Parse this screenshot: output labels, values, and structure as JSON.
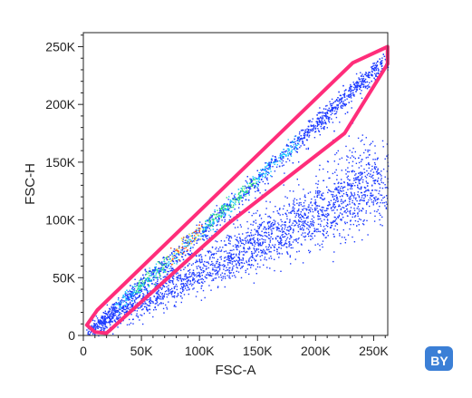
{
  "chart_data": {
    "type": "scatter",
    "xlabel": "FSC-A",
    "ylabel": "FSC-H",
    "xlim": [
      0,
      262144
    ],
    "ylim": [
      0,
      262144
    ],
    "x_ticks": [
      {
        "value": 0,
        "label": "0"
      },
      {
        "value": 50000,
        "label": "50K"
      },
      {
        "value": 100000,
        "label": "100K"
      },
      {
        "value": 150000,
        "label": "150K"
      },
      {
        "value": 200000,
        "label": "200K"
      },
      {
        "value": 250000,
        "label": "250K"
      }
    ],
    "y_ticks": [
      {
        "value": 0,
        "label": "0"
      },
      {
        "value": 50000,
        "label": "50K"
      },
      {
        "value": 100000,
        "label": "100K"
      },
      {
        "value": 150000,
        "label": "150K"
      },
      {
        "value": 200000,
        "label": "200K"
      },
      {
        "value": 250000,
        "label": "250K"
      }
    ],
    "minor_ticks_per_major": 4,
    "grid": false,
    "style": "pseudocolor density dot plot",
    "density_colors": [
      "#1f3cff",
      "#22c6ff",
      "#2fe07a",
      "#f2e23a",
      "#ff4a1a"
    ],
    "populations": [
      {
        "description": "singlet diagonal band",
        "from": [
          8000,
          6000
        ],
        "to": [
          260000,
          240000
        ],
        "spread": 6000,
        "points": 2600
      },
      {
        "description": "lower spread cloud",
        "from": [
          15000,
          8000
        ],
        "to": [
          260000,
          130000
        ],
        "spread": 22000,
        "points": 2200
      }
    ],
    "gate": {
      "shape": "polygon",
      "color": "#ff2d7a",
      "vertices": [
        [
          3000,
          9000
        ],
        [
          12000,
          22000
        ],
        [
          232000,
          236000
        ],
        [
          262000,
          250000
        ],
        [
          262000,
          235000
        ],
        [
          225000,
          175000
        ],
        [
          125000,
          97000
        ],
        [
          20000,
          2000
        ],
        [
          10000,
          3000
        ],
        [
          3000,
          9000
        ]
      ]
    }
  },
  "badge": {
    "text": "BY",
    "color": "#3b7fd6"
  }
}
